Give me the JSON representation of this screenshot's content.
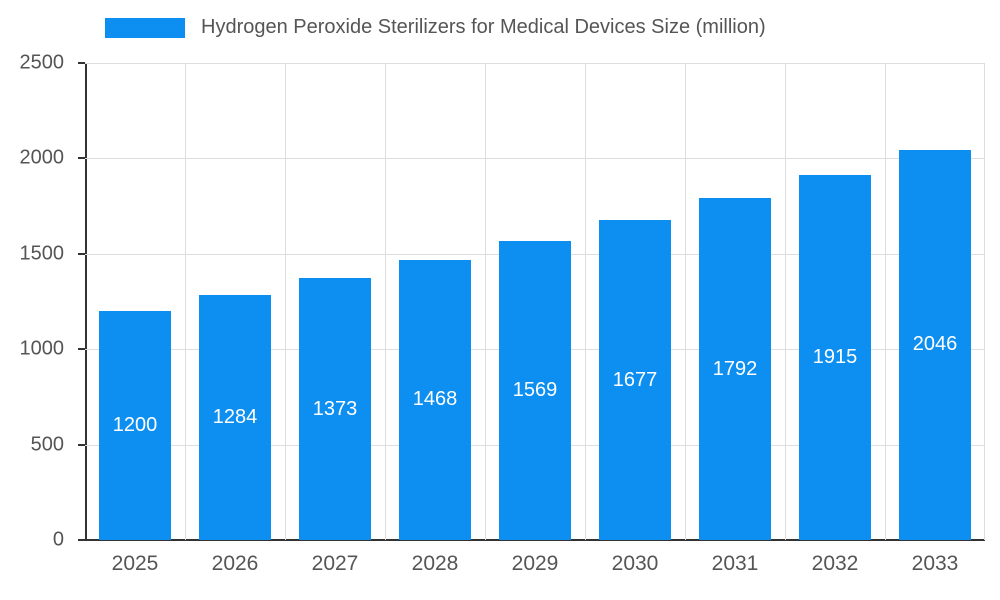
{
  "chart_data": {
    "type": "bar",
    "title": "Hydrogen Peroxide Sterilizers for Medical Devices Size (million)",
    "categories": [
      "2025",
      "2026",
      "2027",
      "2028",
      "2029",
      "2030",
      "2031",
      "2032",
      "2033"
    ],
    "values": [
      1200,
      1284,
      1373,
      1468,
      1569,
      1677,
      1792,
      1915,
      2046
    ],
    "xlabel": "",
    "ylabel": "",
    "ylim": [
      0,
      2500
    ],
    "yticks": [
      0,
      500,
      1000,
      1500,
      2000,
      2500
    ],
    "grid": true,
    "legend_position": "top",
    "bar_color": "#0d8ff2",
    "grid_color": "#dddddd",
    "axis_color": "#333333",
    "label_color": "#555555",
    "value_label_color": "#ffffff"
  }
}
